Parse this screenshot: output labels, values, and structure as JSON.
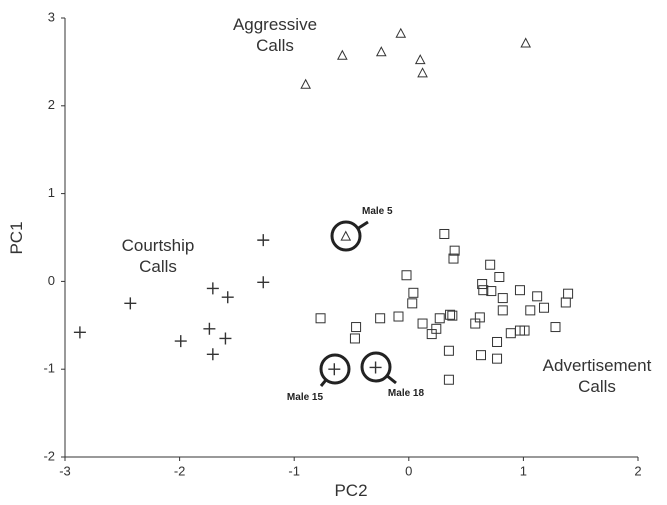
{
  "chart_data": {
    "type": "scatter",
    "x_label": "PC2",
    "y_label": "PC1",
    "xlim": [
      -3,
      2
    ],
    "ylim": [
      -2,
      3
    ],
    "xticks": [
      -3,
      -2,
      -1,
      0,
      1,
      2
    ],
    "yticks": [
      -2,
      -1,
      0,
      1,
      2,
      3
    ],
    "series": [
      {
        "name": "Aggressive Calls",
        "marker": "triangle",
        "color": "#333333",
        "x": [
          -0.9,
          -0.58,
          -0.24,
          -0.07,
          0.1,
          0.12,
          1.02,
          -0.55
        ],
        "y": [
          2.24,
          2.57,
          2.61,
          2.82,
          2.52,
          2.37,
          2.71,
          0.51
        ]
      },
      {
        "name": "Courtship Calls",
        "marker": "plus",
        "color": "#333333",
        "x": [
          -1.27,
          -1.27,
          -1.71,
          -1.58,
          -2.43,
          -2.87,
          -1.74,
          -1.99,
          -1.6,
          -1.71,
          -0.65,
          -0.29
        ],
        "y": [
          0.47,
          -0.01,
          -0.08,
          -0.18,
          -0.25,
          -0.58,
          -0.54,
          -0.68,
          -0.65,
          -0.83,
          -1.0,
          -0.98
        ]
      },
      {
        "name": "Advertisement Calls",
        "marker": "square",
        "color": "#333333",
        "x": [
          -0.77,
          -0.46,
          -0.47,
          -0.25,
          -0.09,
          -0.02,
          0.04,
          0.03,
          0.31,
          0.4,
          0.39,
          0.12,
          0.2,
          0.24,
          0.27,
          0.36,
          0.38,
          0.35,
          0.35,
          0.58,
          0.62,
          0.64,
          0.65,
          0.72,
          0.71,
          0.79,
          0.82,
          0.82,
          0.77,
          0.77,
          0.63,
          0.89,
          0.97,
          1.06,
          0.97,
          1.01,
          1.12,
          1.18,
          1.28,
          1.37,
          1.39
        ],
        "y": [
          -0.42,
          -0.52,
          -0.65,
          -0.42,
          -0.4,
          0.07,
          -0.13,
          -0.25,
          0.54,
          0.35,
          0.26,
          -0.48,
          -0.6,
          -0.54,
          -0.42,
          -0.38,
          -0.39,
          -0.79,
          -1.12,
          -0.48,
          -0.41,
          -0.03,
          -0.1,
          -0.11,
          0.19,
          0.05,
          -0.19,
          -0.33,
          -0.69,
          -0.88,
          -0.84,
          -0.59,
          -0.1,
          -0.33,
          -0.56,
          -0.56,
          -0.17,
          -0.3,
          -0.52,
          -0.24,
          -0.14
        ]
      }
    ],
    "annotations": [
      "Male 5",
      "Male 15",
      "Male 18"
    ]
  }
}
